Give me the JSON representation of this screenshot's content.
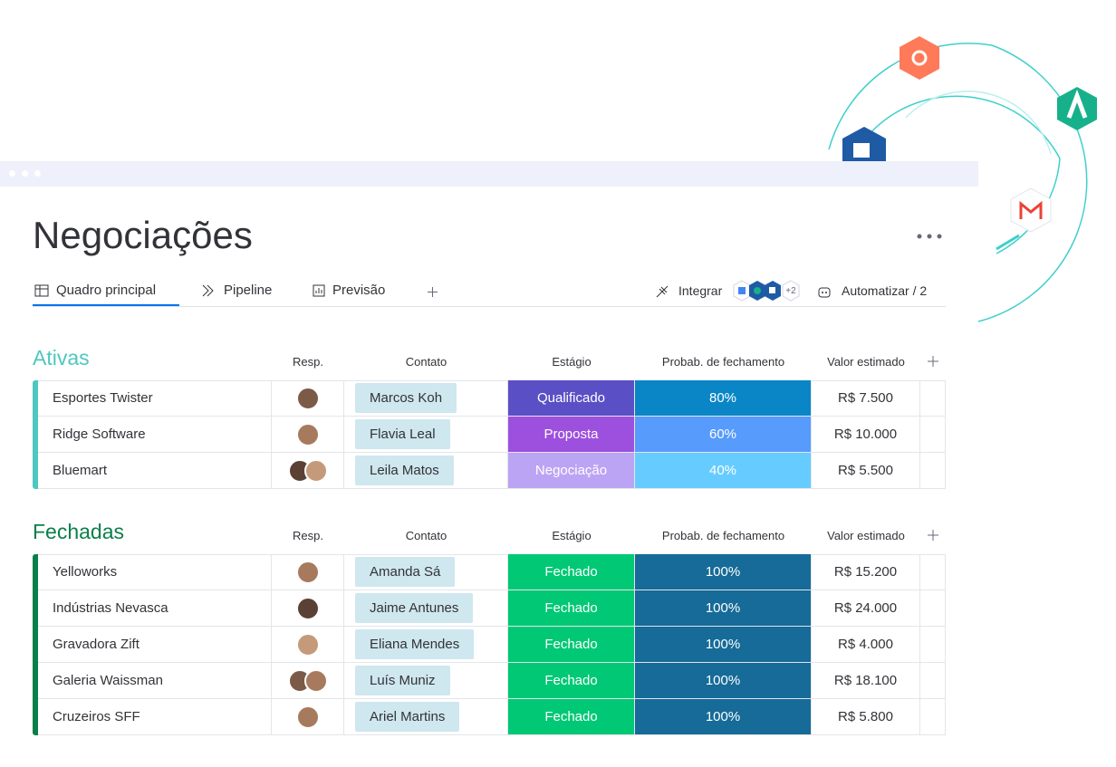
{
  "header": {
    "title": "Negociações"
  },
  "tabs": [
    "Quadro principal",
    "Pipeline",
    "Previsão"
  ],
  "toolbar": {
    "integrate": "Integrar",
    "extra_count": "+2",
    "automate": "Automatizar / 2"
  },
  "groups": [
    {
      "title": "Ativas",
      "color": "#4fc7c1",
      "columns": [
        "Resp.",
        "Contato",
        "Estágio",
        "Probab. de fechamento",
        "Valor estimado"
      ],
      "rows": [
        {
          "name": "Esportes Twister",
          "contact": "Marcos Koh",
          "stage": "Qualificado",
          "stage_color": "#5b4fc6",
          "probability": "80%",
          "probability_color": "#0a86c6",
          "value": "R$ 7.500"
        },
        {
          "name": "Ridge Software",
          "contact": "Flavia Leal",
          "stage": "Proposta",
          "stage_color": "#9d50dd",
          "probability": "60%",
          "probability_color": "#579bfc",
          "value": "R$ 10.000"
        },
        {
          "name": "Bluemart",
          "contact": "Leila Matos",
          "stage": "Negociação",
          "stage_color": "#bca4f4",
          "probability": "40%",
          "probability_color": "#66ccff",
          "value": "R$ 5.500"
        }
      ]
    },
    {
      "title": "Fechadas",
      "color": "#0a7f4a",
      "columns": [
        "Resp.",
        "Contato",
        "Estágio",
        "Probab. de fechamento",
        "Valor estimado"
      ],
      "rows": [
        {
          "name": "Yelloworks",
          "contact": "Amanda Sá",
          "stage": "Fechado",
          "stage_color": "#00c875",
          "probability": "100%",
          "probability_color": "#166b98",
          "value": "R$ 15.200"
        },
        {
          "name": "Indústrias Nevasca",
          "contact": "Jaime Antunes",
          "stage": "Fechado",
          "stage_color": "#00c875",
          "probability": "100%",
          "probability_color": "#166b98",
          "value": "R$ 24.000"
        },
        {
          "name": "Gravadora Zift",
          "contact": "Eliana Mendes",
          "stage": "Fechado",
          "stage_color": "#00c875",
          "probability": "100%",
          "probability_color": "#166b98",
          "value": "R$ 4.000"
        },
        {
          "name": "Galeria Waissman",
          "contact": "Luís Muniz",
          "stage": "Fechado",
          "stage_color": "#00c875",
          "probability": "100%",
          "probability_color": "#166b98",
          "value": "R$ 18.100"
        },
        {
          "name": "Cruzeiros SFF",
          "contact": "Ariel Martins",
          "stage": "Fechado",
          "stage_color": "#00c875",
          "probability": "100%",
          "probability_color": "#166b98",
          "value": "R$ 5.800"
        }
      ]
    }
  ]
}
